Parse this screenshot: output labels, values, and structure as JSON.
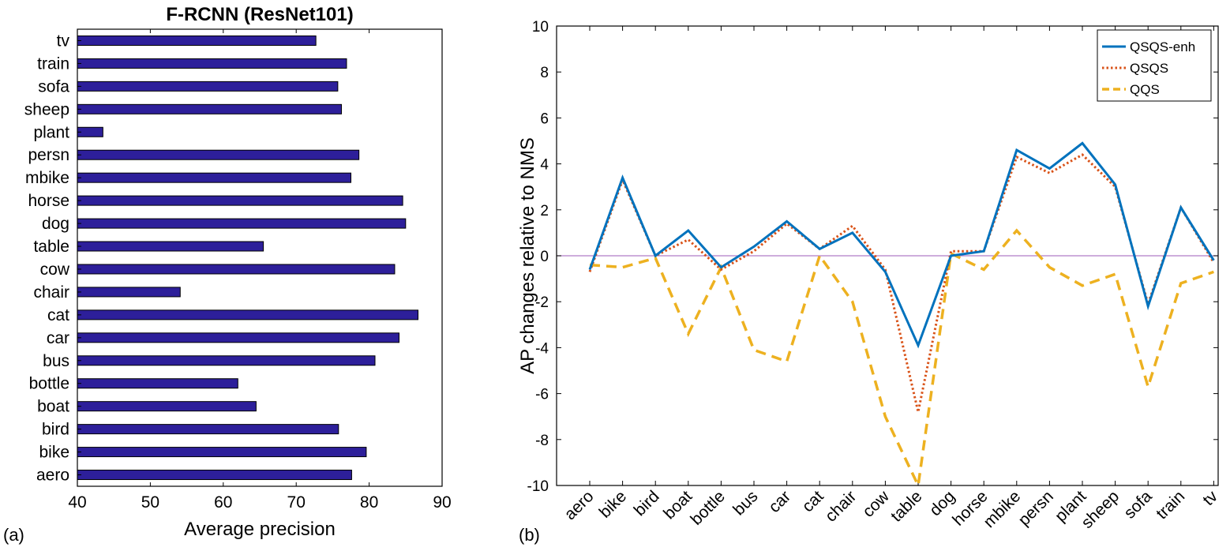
{
  "panel_a_label": "(a)",
  "panel_b_label": "(b)",
  "chart_data": [
    {
      "type": "bar",
      "orientation": "horizontal",
      "title": "F-RCNN (ResNet101)",
      "xlabel": "Average precision",
      "ylabel": "",
      "xlim": [
        40,
        90
      ],
      "xticks": [
        40,
        50,
        60,
        70,
        80,
        90
      ],
      "bar_color": "#2d1f9a",
      "categories": [
        "aero",
        "bike",
        "bird",
        "boat",
        "bottle",
        "bus",
        "car",
        "cat",
        "chair",
        "cow",
        "table",
        "dog",
        "horse",
        "mbike",
        "persn",
        "plant",
        "sheep",
        "sofa",
        "train",
        "tv"
      ],
      "values": [
        77.6,
        79.6,
        75.8,
        64.5,
        62.0,
        80.8,
        84.1,
        86.7,
        54.1,
        83.5,
        65.5,
        85.0,
        84.6,
        77.5,
        78.6,
        43.5,
        76.2,
        75.7,
        76.9,
        72.7
      ]
    },
    {
      "type": "line",
      "title": "",
      "xlabel": "",
      "ylabel": "AP changes relative to NMS",
      "ylim": [
        -10,
        10
      ],
      "yticks": [
        -10,
        -8,
        -6,
        -4,
        -2,
        0,
        2,
        4,
        6,
        8,
        10
      ],
      "legend_position": "top-right",
      "zero_line_color": "#b07cc6",
      "categories": [
        "aero",
        "bike",
        "bird",
        "boat",
        "bottle",
        "bus",
        "car",
        "cat",
        "chair",
        "cow",
        "table",
        "dog",
        "horse",
        "mbike",
        "persn",
        "plant",
        "sheep",
        "sofa",
        "train",
        "tv"
      ],
      "series": [
        {
          "name": "QSQS-enh",
          "color": "#0072bd",
          "style": "solid",
          "values": [
            -0.6,
            3.4,
            0.0,
            1.1,
            -0.5,
            0.4,
            1.5,
            0.3,
            1.0,
            -0.7,
            -3.9,
            0.0,
            0.2,
            4.6,
            3.8,
            4.9,
            3.1,
            -2.2,
            2.1,
            -0.2
          ]
        },
        {
          "name": "QSQS",
          "color": "#d95319",
          "style": "dotted",
          "values": [
            -0.7,
            3.3,
            0.0,
            0.7,
            -0.6,
            0.2,
            1.4,
            0.3,
            1.3,
            -0.6,
            -6.8,
            0.2,
            0.2,
            4.3,
            3.6,
            4.4,
            3.0,
            -2.1,
            2.1,
            -0.3
          ]
        },
        {
          "name": "QQS",
          "color": "#edb120",
          "style": "dashed",
          "values": [
            -0.4,
            -0.5,
            -0.1,
            -3.4,
            -0.5,
            -4.1,
            -4.6,
            0.0,
            -2.0,
            -7.0,
            -10.0,
            0.1,
            -0.6,
            1.1,
            -0.5,
            -1.3,
            -0.8,
            -5.7,
            -1.2,
            -0.7
          ]
        }
      ]
    }
  ]
}
